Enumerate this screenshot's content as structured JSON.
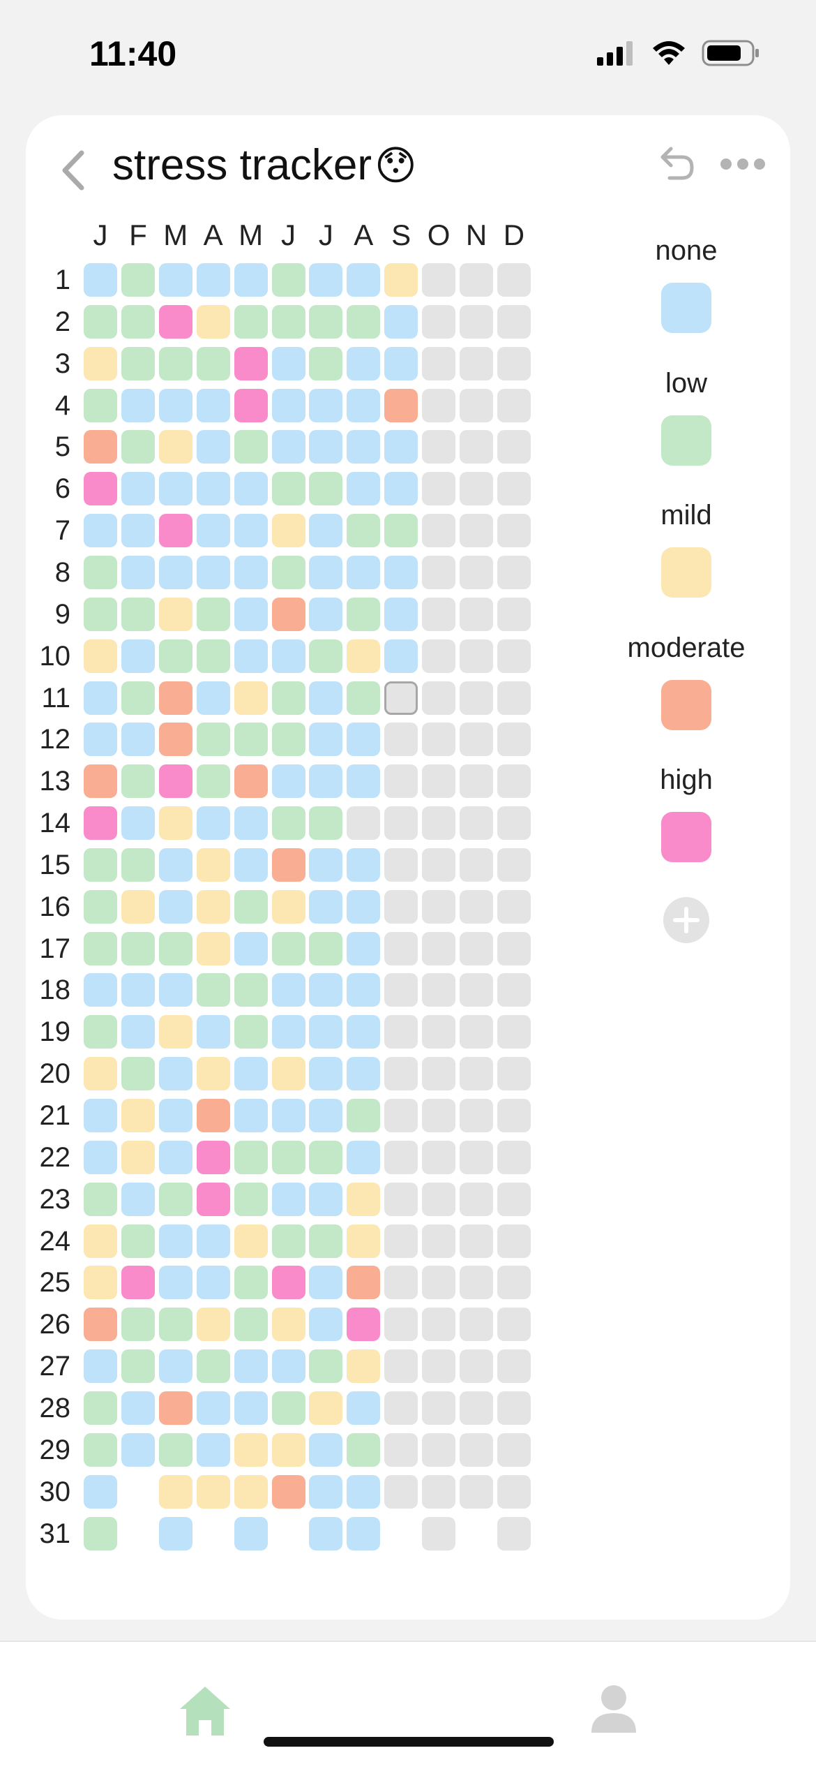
{
  "status_bar": {
    "time": "11:40"
  },
  "header": {
    "title": "stress tracker",
    "emoji": "😯"
  },
  "months": [
    "J",
    "F",
    "M",
    "A",
    "M",
    "J",
    "J",
    "A",
    "S",
    "O",
    "N",
    "D"
  ],
  "days": [
    "1",
    "2",
    "3",
    "4",
    "5",
    "6",
    "7",
    "8",
    "9",
    "10",
    "11",
    "12",
    "13",
    "14",
    "15",
    "16",
    "17",
    "18",
    "19",
    "20",
    "21",
    "22",
    "23",
    "24",
    "25",
    "26",
    "27",
    "28",
    "29",
    "30",
    "31"
  ],
  "levels": [
    {
      "key": "none",
      "label": "none",
      "color": "#bfe2fb"
    },
    {
      "key": "low",
      "label": "low",
      "color": "#c2e8c7"
    },
    {
      "key": "mild",
      "label": "mild",
      "color": "#fce6b1"
    },
    {
      "key": "moderate",
      "label": "moderate",
      "color": "#f9ae94"
    },
    {
      "key": "high",
      "label": "high",
      "color": "#f98bcb"
    }
  ],
  "empty_color": "#e4e4e4",
  "selected_cell": {
    "day": 11,
    "month": "S"
  },
  "grid": [
    "BGBBBGBBYEEE",
    "GGHYGGGGBEEE",
    "YGGGHBGBBEEE",
    "GBBBHBBBOEEE",
    "OGYBGBBBBEEE",
    "HBBBBGGBBEEE",
    "BBHBBYBGGEEE",
    "GBBBBGBBBEEE",
    "GGYGBOBGBEEE",
    "YBGGBBGYBEEE",
    "BGOBYGBGEEEE",
    "BBOGGGBBEEEE",
    "OGHGOBBBEEEE",
    "HBYBBGGEEEEE",
    "GGBYBOBBEEEE",
    "GYBYGYBBEEEE",
    "GGGYBGGBEEEE",
    "BBBGGBBBEEEE",
    "GBYBGBBBEEEE",
    "YGBYBYBBEEEE",
    "BYBOBBBGEEEE",
    "BYBHGGGBEEEE",
    "GBGHGBBYEEEE",
    "YGBBYGGYEEEE",
    "YHBBGHBOEEEE",
    "OGGYGYBHEEEE",
    "BGBGBBGYEEEE",
    "GBOBBGYBEEEE",
    "GBGBYYBGEEEE",
    "B.YYYOBBEEEE",
    "G.B.B.BB.E.E"
  ],
  "icons": {
    "back": "chevron-left-icon",
    "undo": "undo-icon",
    "more": "ellipsis-icon",
    "add": "plus-circle-icon",
    "home": "home-icon",
    "profile": "person-icon"
  },
  "colors": {
    "accent_green": "#b4e0bc",
    "inactive_gray": "#d3d3d3"
  }
}
